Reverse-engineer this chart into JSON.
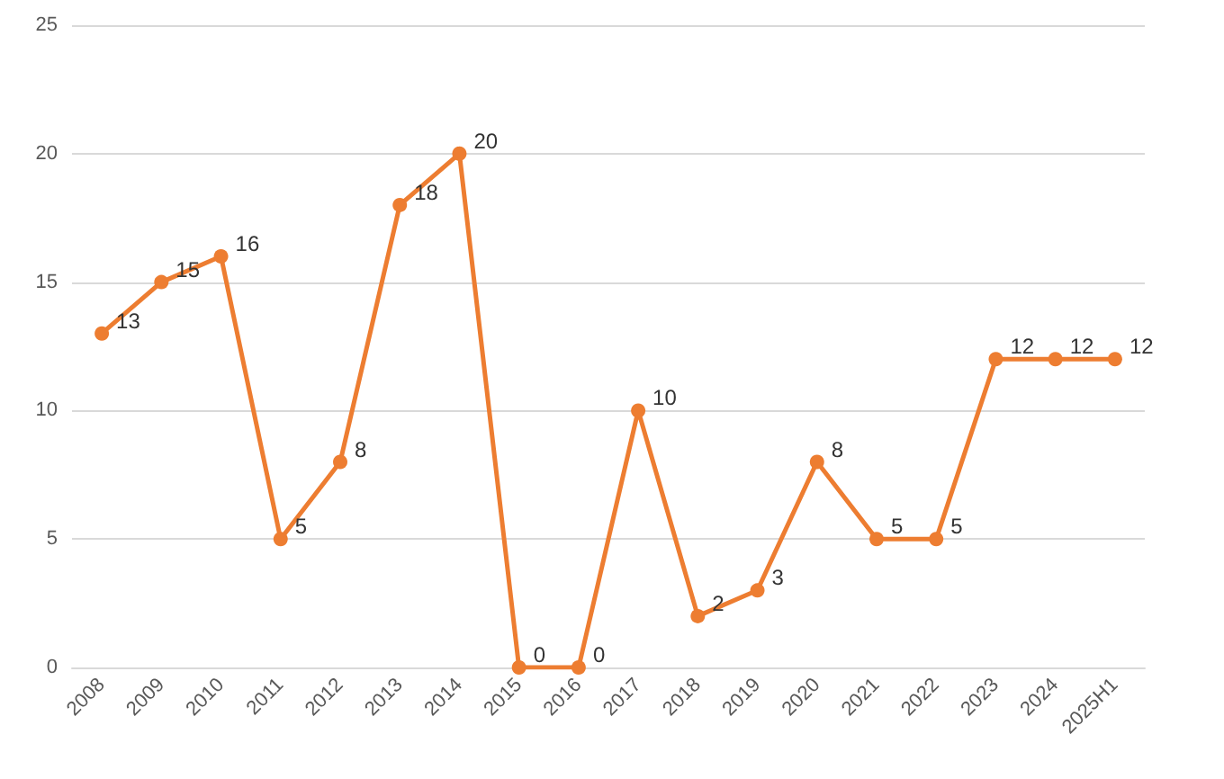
{
  "chart_data": {
    "type": "line",
    "categories": [
      "2008",
      "2009",
      "2010",
      "2011",
      "2012",
      "2013",
      "2014",
      "2015",
      "2016",
      "2017",
      "2018",
      "2019",
      "2020",
      "2021",
      "2022",
      "2023",
      "2024",
      "2025H1"
    ],
    "series": [
      {
        "color": "#ed7d31",
        "values": [
          13,
          15,
          16,
          5,
          8,
          18,
          20,
          0,
          0,
          10,
          2,
          3,
          8,
          5,
          5,
          12,
          12,
          12
        ]
      }
    ],
    "ylim": [
      0,
      25
    ],
    "yticks": [
      0,
      5,
      10,
      15,
      20,
      25
    ],
    "grid": "y",
    "marker": "circle",
    "line_style": "solid",
    "data_labels": true
  }
}
